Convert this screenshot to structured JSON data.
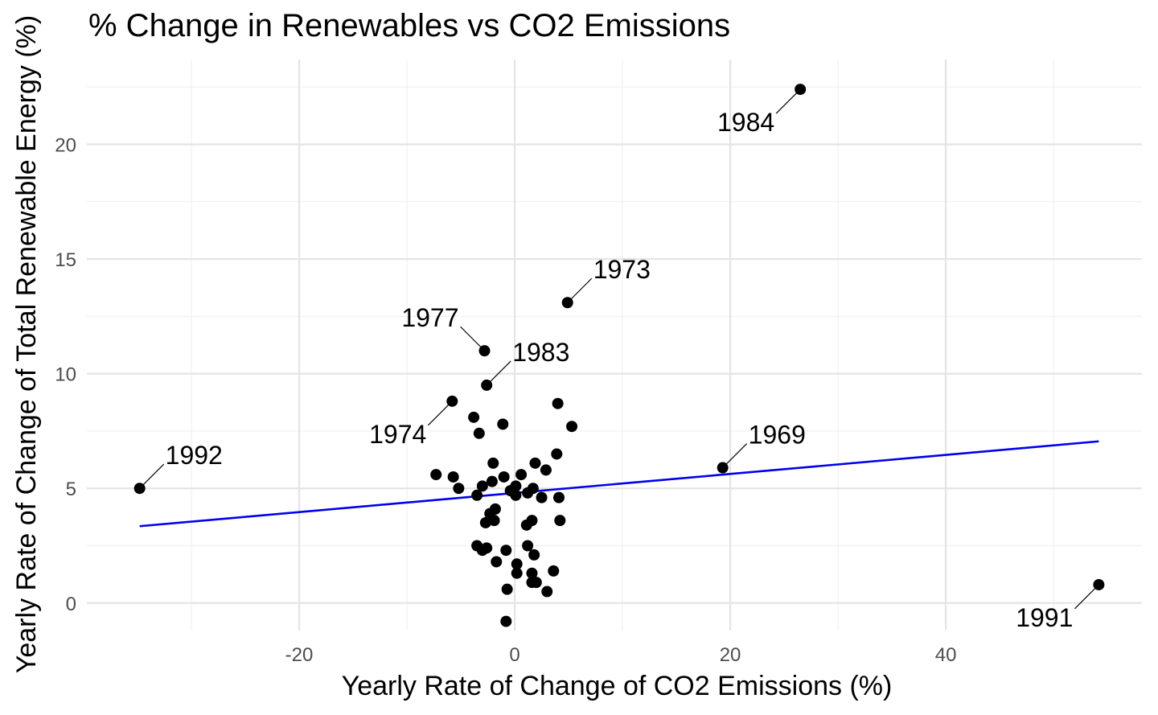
{
  "chart_data": {
    "type": "scatter",
    "title": "% Change in Renewables vs CO2 Emissions",
    "xlabel": "Yearly Rate of Change of CO2 Emissions (%)",
    "ylabel": "Yearly Rate of Change of Total Renewable Energy (%)",
    "xlim": [
      -39.7,
      58.2
    ],
    "ylim": [
      -1.2,
      23.7
    ],
    "x_ticks": [
      -20,
      0,
      20,
      40
    ],
    "y_ticks": [
      0,
      5,
      10,
      15,
      20
    ],
    "grid": true,
    "points": [
      {
        "x": -34.8,
        "y": 5.0,
        "label": "1992"
      },
      {
        "x": 26.5,
        "y": 22.4,
        "label": "1984"
      },
      {
        "x": 4.9,
        "y": 13.1,
        "label": "1973"
      },
      {
        "x": -2.8,
        "y": 11.0,
        "label": "1977"
      },
      {
        "x": -2.6,
        "y": 9.5,
        "label": "1983"
      },
      {
        "x": -5.8,
        "y": 8.8,
        "label": "1974"
      },
      {
        "x": 19.3,
        "y": 5.9,
        "label": "1969"
      },
      {
        "x": 54.2,
        "y": 0.8,
        "label": "1991"
      },
      {
        "x": -3.8,
        "y": 8.1
      },
      {
        "x": -3.3,
        "y": 7.4
      },
      {
        "x": -1.1,
        "y": 7.8
      },
      {
        "x": 4.0,
        "y": 8.7
      },
      {
        "x": 5.3,
        "y": 7.7
      },
      {
        "x": 3.9,
        "y": 6.5
      },
      {
        "x": -2.0,
        "y": 6.1
      },
      {
        "x": 1.9,
        "y": 6.1
      },
      {
        "x": 2.9,
        "y": 5.8
      },
      {
        "x": 0.6,
        "y": 5.6
      },
      {
        "x": -7.3,
        "y": 5.6
      },
      {
        "x": -5.7,
        "y": 5.5
      },
      {
        "x": -1.0,
        "y": 5.5
      },
      {
        "x": -2.1,
        "y": 5.3
      },
      {
        "x": -3.0,
        "y": 5.1
      },
      {
        "x": -5.2,
        "y": 5.0
      },
      {
        "x": 0.1,
        "y": 5.1
      },
      {
        "x": -0.4,
        "y": 4.9
      },
      {
        "x": 1.7,
        "y": 5.0
      },
      {
        "x": 0.1,
        "y": 4.7
      },
      {
        "x": 1.2,
        "y": 4.8
      },
      {
        "x": -3.5,
        "y": 4.7
      },
      {
        "x": 2.5,
        "y": 4.6
      },
      {
        "x": 4.1,
        "y": 4.6
      },
      {
        "x": -2.3,
        "y": 3.9
      },
      {
        "x": -1.8,
        "y": 4.1
      },
      {
        "x": -2.7,
        "y": 3.5
      },
      {
        "x": -1.9,
        "y": 3.6
      },
      {
        "x": 1.6,
        "y": 3.6
      },
      {
        "x": 1.1,
        "y": 3.4
      },
      {
        "x": 4.2,
        "y": 3.6
      },
      {
        "x": -3.5,
        "y": 2.5
      },
      {
        "x": -2.6,
        "y": 2.4
      },
      {
        "x": -3.0,
        "y": 2.3
      },
      {
        "x": -0.8,
        "y": 2.3
      },
      {
        "x": 1.2,
        "y": 2.5
      },
      {
        "x": 1.8,
        "y": 2.1
      },
      {
        "x": -1.7,
        "y": 1.8
      },
      {
        "x": 0.2,
        "y": 1.7
      },
      {
        "x": 0.2,
        "y": 1.3
      },
      {
        "x": 1.6,
        "y": 1.3
      },
      {
        "x": 3.6,
        "y": 1.4
      },
      {
        "x": 1.6,
        "y": 0.9
      },
      {
        "x": 2.0,
        "y": 0.9
      },
      {
        "x": -0.7,
        "y": 0.6
      },
      {
        "x": 3.0,
        "y": 0.5
      },
      {
        "x": -0.8,
        "y": -0.8
      }
    ],
    "trend_line": {
      "x": [
        -34.8,
        54.2
      ],
      "y": [
        3.35,
        7.05
      ],
      "color": "#0000ee"
    }
  }
}
